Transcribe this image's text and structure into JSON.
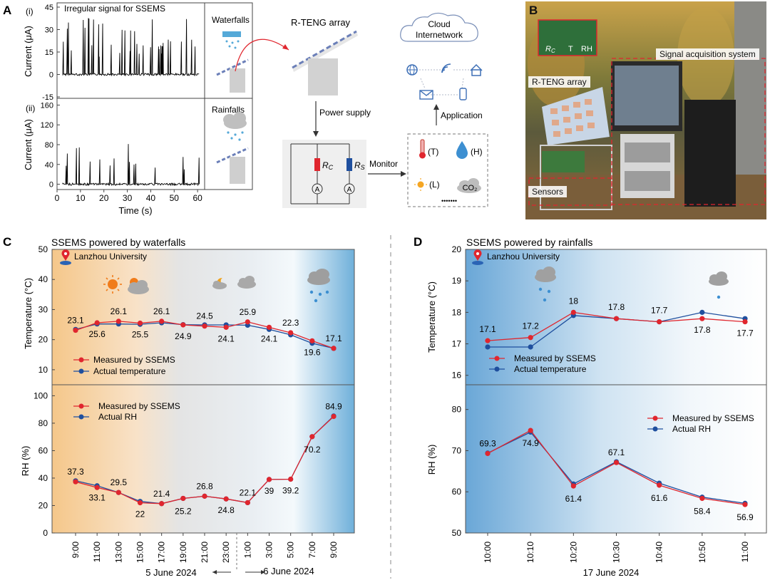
{
  "panel_letters": {
    "a": "A",
    "b": "B",
    "c": "C",
    "d": "D"
  },
  "panelA": {
    "sub_i": "(i)",
    "sub_ii": "(ii)",
    "plot_title": "Irregular signal for SSEMS",
    "ylabel": "Current (μA)",
    "xlabel": "Time (s)",
    "waterfalls_label": "Waterfalls",
    "rainfalls_label": "Rainfalls",
    "rteng_label": "R-TENG array",
    "power_label": "Power supply",
    "monitor_label": "Monitor",
    "rc_r": "R",
    "rc_sub": "C",
    "rs_r": "R",
    "rs_sub": "S",
    "ammeter": "A",
    "cloud_line1": "Cloud",
    "cloud_line2": "Internetwork",
    "application_label": "Application",
    "sensor_T": "(T)",
    "sensor_H": "(H)",
    "sensor_L": "(L)",
    "sensor_co2": "CO₂",
    "dots": "•••••••"
  },
  "panelB": {
    "signal_label": "Signal acquisition system",
    "array_label": "R-TENG array",
    "sensors_label": "Sensors",
    "inset_rc": "R",
    "inset_rc_sub": "C",
    "inset_t": "T",
    "inset_rh": "RH"
  },
  "chart_data": [
    {
      "type": "line",
      "panel": "A(i)",
      "title": "Irregular signal for SSEMS",
      "ylabel": "Current (μA)",
      "ylim": [
        -15,
        45
      ],
      "yticks": [
        "45",
        "30",
        "15",
        "0",
        "-15"
      ],
      "xlim": [
        0,
        63
      ],
      "series": [
        {
          "name": "",
          "values": []
        }
      ]
    },
    {
      "type": "line",
      "panel": "A(ii)",
      "xlabel": "Time (s)",
      "ylabel": "Current (μA)",
      "ylim": [
        -5,
        165
      ],
      "yticks": [
        "160",
        "120",
        "80",
        "40",
        "0"
      ],
      "xticks": [
        "0",
        "10",
        "20",
        "30",
        "40",
        "50",
        "60"
      ],
      "xlim": [
        0,
        63
      ],
      "series": [
        {
          "name": "",
          "values": []
        }
      ]
    },
    {
      "type": "line",
      "panel": "C",
      "title": "SSEMS powered by waterfalls",
      "location": "Lanzhou University",
      "categories": [
        "9:00",
        "11:00",
        "13:00",
        "15:00",
        "17:00",
        "19:00",
        "21:00",
        "23:00",
        "1:00",
        "3:00",
        "5:00",
        "7:00",
        "9:00"
      ],
      "date_left": "5 June 2024",
      "date_right": "6 June 2024",
      "top": {
        "ylabel": "Temperature (°C)",
        "ylim": [
          5,
          50
        ],
        "yticks": [
          "50",
          "40",
          "30",
          "20",
          "10"
        ],
        "series": [
          {
            "name": "Measured by SSEMS",
            "values": [
              23.1,
              25.6,
              26.1,
              25.5,
              26.1,
              24.9,
              24.5,
              24.1,
              25.9,
              24.1,
              22.3,
              19.6,
              17.1
            ],
            "color": "#e0262e"
          },
          {
            "name": "Actual temperature",
            "values": [
              23.4,
              25.2,
              25.2,
              25.1,
              25.6,
              25.0,
              24.9,
              24.9,
              24.8,
              23.4,
              21.6,
              18.8,
              17.1
            ],
            "color": "#1f4f9e"
          }
        ],
        "labels": [
          "23.1",
          "25.6",
          "26.1",
          "25.5",
          "26.1",
          "24.9",
          "24.5",
          "24.1",
          "25.9",
          "24.1",
          "22.3",
          "19.6",
          "17.1"
        ]
      },
      "bottom": {
        "ylabel": "RH (%)",
        "ylim": [
          0,
          108
        ],
        "yticks": [
          "100",
          "80",
          "60",
          "40",
          "20",
          "0"
        ],
        "series": [
          {
            "name": "Measured by SSEMS",
            "values": [
              37.3,
              33.1,
              29.5,
              22,
              21.4,
              25.2,
              26.8,
              24.8,
              22.1,
              39,
              39.2,
              70.2,
              84.9
            ],
            "color": "#e0262e"
          },
          {
            "name": "Actual RH",
            "values": [
              38.0,
              34.4,
              29.5,
              23.0,
              21.4,
              25.2,
              26.8,
              24.8,
              22.1,
              39,
              39.2,
              70.2,
              85.2
            ],
            "color": "#1f4f9e"
          }
        ],
        "labels": [
          "37.3",
          "33.1",
          "29.5",
          "22",
          "21.4",
          "25.2",
          "26.8",
          "24.8",
          "22.1",
          "39",
          "39.2",
          "70.2",
          "84.9"
        ]
      },
      "colors": {
        "warm": "#f6c98a",
        "neutral": "#d8d8d8",
        "cool": "#76b3dc"
      }
    },
    {
      "type": "line",
      "panel": "D",
      "title": "SSEMS powered by rainfalls",
      "location": "Lanzhou University",
      "categories": [
        "10:00",
        "10:10",
        "10:20",
        "10:30",
        "10:40",
        "10:50",
        "11:00"
      ],
      "date": "17 June 2024",
      "top": {
        "ylabel": "Temperature (°C)",
        "ylim": [
          15.7,
          20
        ],
        "yticks": [
          "20",
          "19",
          "18",
          "17",
          "16"
        ],
        "series": [
          {
            "name": "Measured by SSEMS",
            "values": [
              17.1,
              17.2,
              18.0,
              17.8,
              17.7,
              17.8,
              17.7
            ],
            "color": "#e0262e"
          },
          {
            "name": "Actual temperature",
            "values": [
              16.9,
              16.9,
              17.9,
              17.8,
              17.7,
              18.0,
              17.8
            ],
            "color": "#1f4f9e"
          }
        ],
        "labels": [
          "17.1",
          "17.2",
          "18",
          "17.8",
          "17.7",
          "17.8",
          "17.7"
        ]
      },
      "bottom": {
        "ylabel": "RH (%)",
        "ylim": [
          50,
          86
        ],
        "yticks": [
          "80",
          "70",
          "60",
          "50"
        ],
        "series": [
          {
            "name": "Measured by SSEMS",
            "values": [
              69.3,
              74.9,
              61.4,
              67.1,
              61.6,
              58.4,
              56.9
            ],
            "color": "#e0262e"
          },
          {
            "name": "Actual RH",
            "values": [
              69.4,
              74.5,
              61.9,
              67.3,
              62.1,
              58.7,
              57.2
            ],
            "color": "#1f4f9e"
          }
        ],
        "labels": [
          "69.3",
          "74.9",
          "61.4",
          "67.1",
          "61.6",
          "58.4",
          "56.9"
        ]
      },
      "colors": {
        "rain": "#6aa7d7"
      }
    }
  ]
}
